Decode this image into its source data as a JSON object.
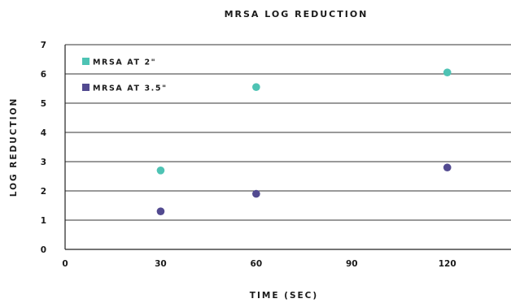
{
  "chart_data": {
    "type": "scatter",
    "title": "MRSA LOG REDUCTION",
    "xlabel": "TIME (SEC)",
    "ylabel": "LOG REDUCTION",
    "xlim": [
      0,
      140
    ],
    "ylim": [
      0,
      7
    ],
    "xticks": [
      0,
      30,
      60,
      90,
      120
    ],
    "yticks": [
      0,
      1,
      2,
      3,
      4,
      5,
      6,
      7
    ],
    "grid": "horizontal",
    "legend_position": "top-left",
    "series": [
      {
        "name": "MRSA AT 2\"",
        "color": "#4ec3b4",
        "x": [
          30,
          60,
          120
        ],
        "y": [
          2.7,
          5.55,
          6.05
        ]
      },
      {
        "name": "MRSA AT 3.5\"",
        "color": "#524a90",
        "x": [
          30,
          60,
          120
        ],
        "y": [
          1.3,
          1.9,
          2.8
        ]
      }
    ]
  }
}
